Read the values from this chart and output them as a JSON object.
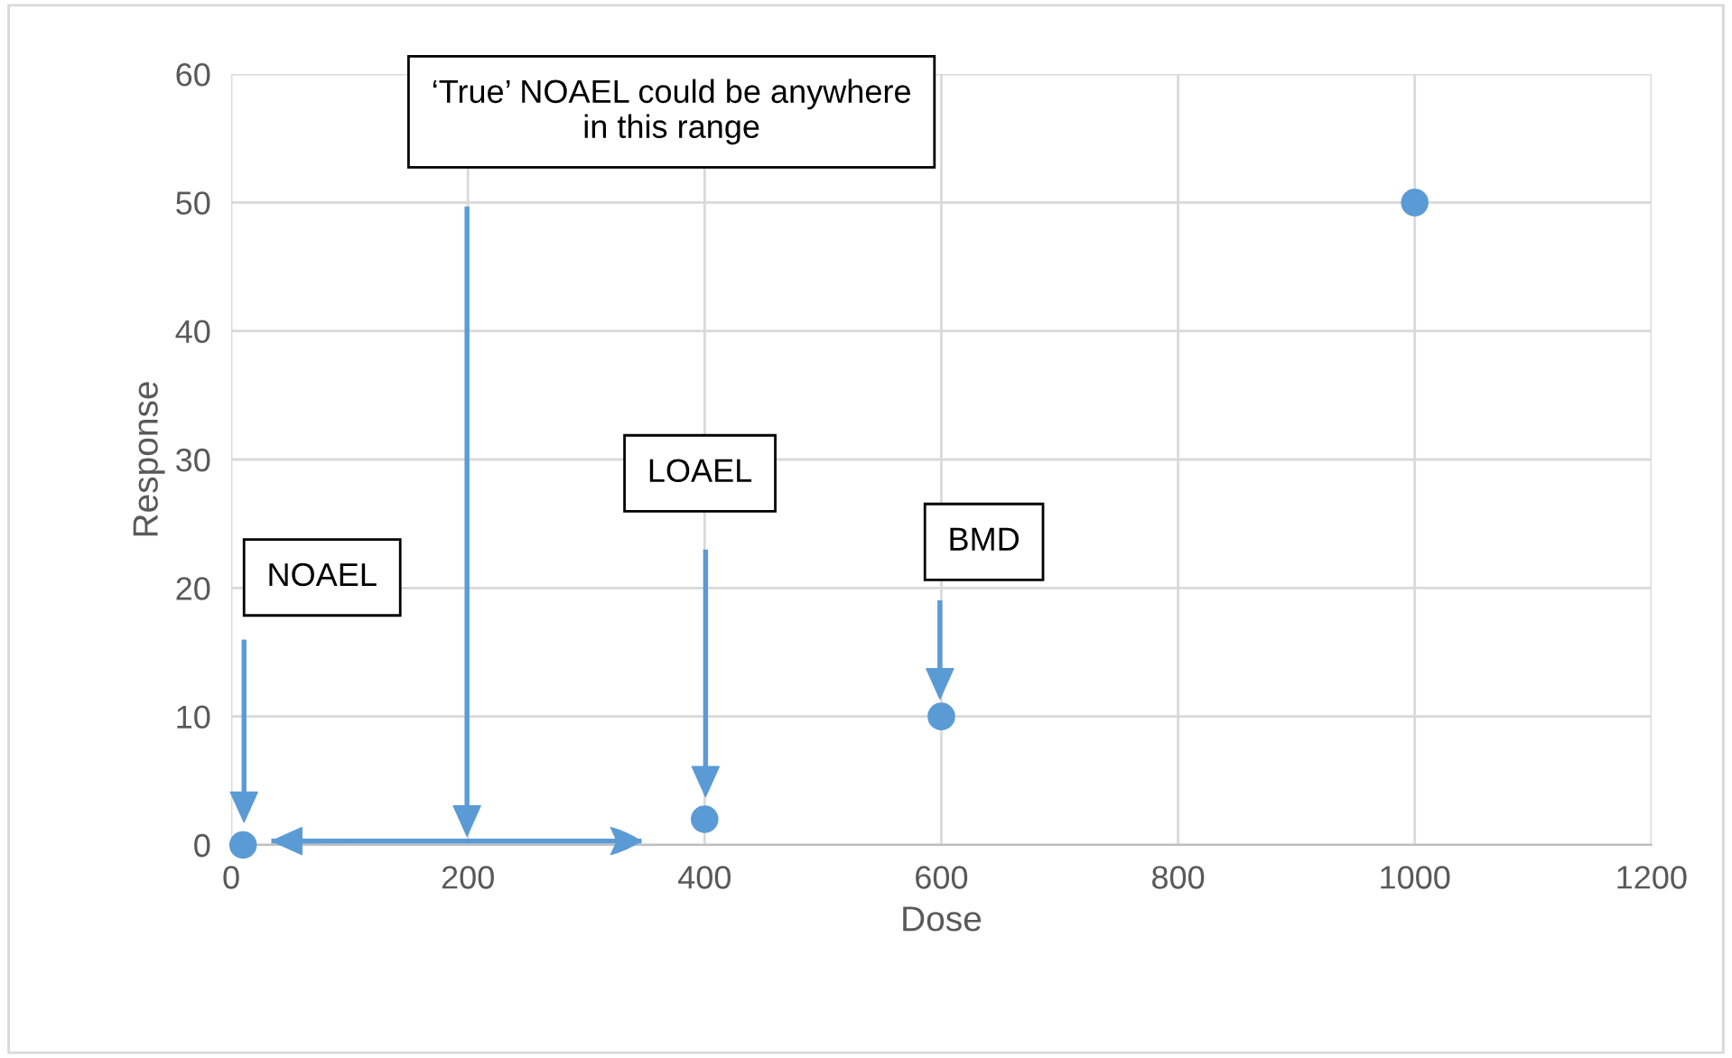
{
  "chart_data": {
    "type": "scatter",
    "xlabel": "Dose",
    "ylabel": "Response",
    "x": [
      10,
      400,
      600,
      1000
    ],
    "series": [
      {
        "color": "#5b9bd5",
        "values": [
          0,
          2,
          10,
          50
        ]
      }
    ],
    "xlim": [
      0,
      1200
    ],
    "ylim": [
      0,
      60
    ],
    "xticks": [
      0,
      200,
      400,
      600,
      800,
      1000,
      1200
    ],
    "yticks": [
      0,
      10,
      20,
      30,
      40,
      50,
      60
    ],
    "grid": true,
    "marker": "circle",
    "annotations": [
      "NOAEL",
      "LOAEL",
      "BMD",
      "‘True’ NOAEL could be anywhere\nin this range"
    ]
  }
}
